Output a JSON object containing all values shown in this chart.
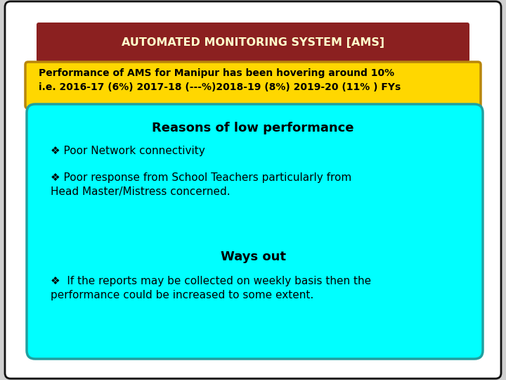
{
  "title": "AUTOMATED MONITORING SYSTEM [AMS]",
  "title_bg": "#8B2020",
  "title_color": "#FFFFCC",
  "subtitle_text": "Performance of AMS for Manipur has been hovering around 10%\ni.e. 2016-17 (6%) 2017-18 (---%)2018-19 (8%) 2019-20 (11% ) FYs",
  "subtitle_bg": "#FFD700",
  "subtitle_border": "#B8860B",
  "subtitle_color": "#000000",
  "cyan_box_bg": "#00FFFF",
  "cyan_box_border": "#20A0A0",
  "reasons_title": "Reasons of low performance",
  "reasons_items": [
    "Poor Network connectivity",
    "Poor response from School Teachers particularly from\nHead Master/Mistress concerned."
  ],
  "ways_title": "Ways out",
  "ways_items": [
    "  If the reports may be collected on weekly basis then the\nperformance could be increased to some extent."
  ],
  "background_color": "#D0D0D0",
  "text_color": "#000000",
  "outer_border_color": "#111111"
}
